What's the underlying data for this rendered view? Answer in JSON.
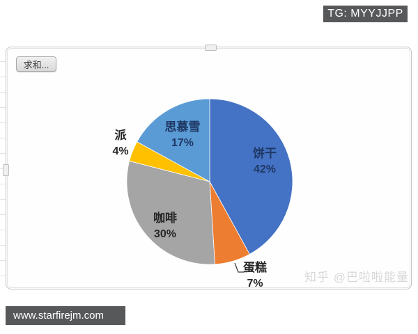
{
  "overlays": {
    "tg_badge": "TG: MYYJJPP",
    "watermark": "知乎 @巴啦啦能量",
    "footer_url": "www.starfirejm.com"
  },
  "chart": {
    "field_button_label": "求和..."
  },
  "chart_data": {
    "type": "pie",
    "title": "",
    "categories": [
      "饼干",
      "蛋糕",
      "咖啡",
      "派",
      "思慕雪"
    ],
    "values": [
      42,
      7,
      30,
      4,
      17
    ],
    "unit": "%",
    "data_labels": [
      "饼干 42%",
      "蛋糕 7%",
      "咖啡 30%",
      "派 4%",
      "思慕雪 17%"
    ],
    "colors": [
      "#4472C4",
      "#ED7D31",
      "#A5A5A5",
      "#FFC000",
      "#5B9BD5"
    ],
    "label_text_colors": [
      "#1f3864",
      "#262626",
      "#262626",
      "#262626",
      "#1f3864"
    ],
    "start_angle_deg": 0,
    "direction": "clockwise",
    "legend": "none",
    "label_positions": [
      "inside",
      "outside",
      "inside",
      "outside",
      "inside"
    ],
    "leader_line_slices": [
      "蛋糕"
    ]
  }
}
